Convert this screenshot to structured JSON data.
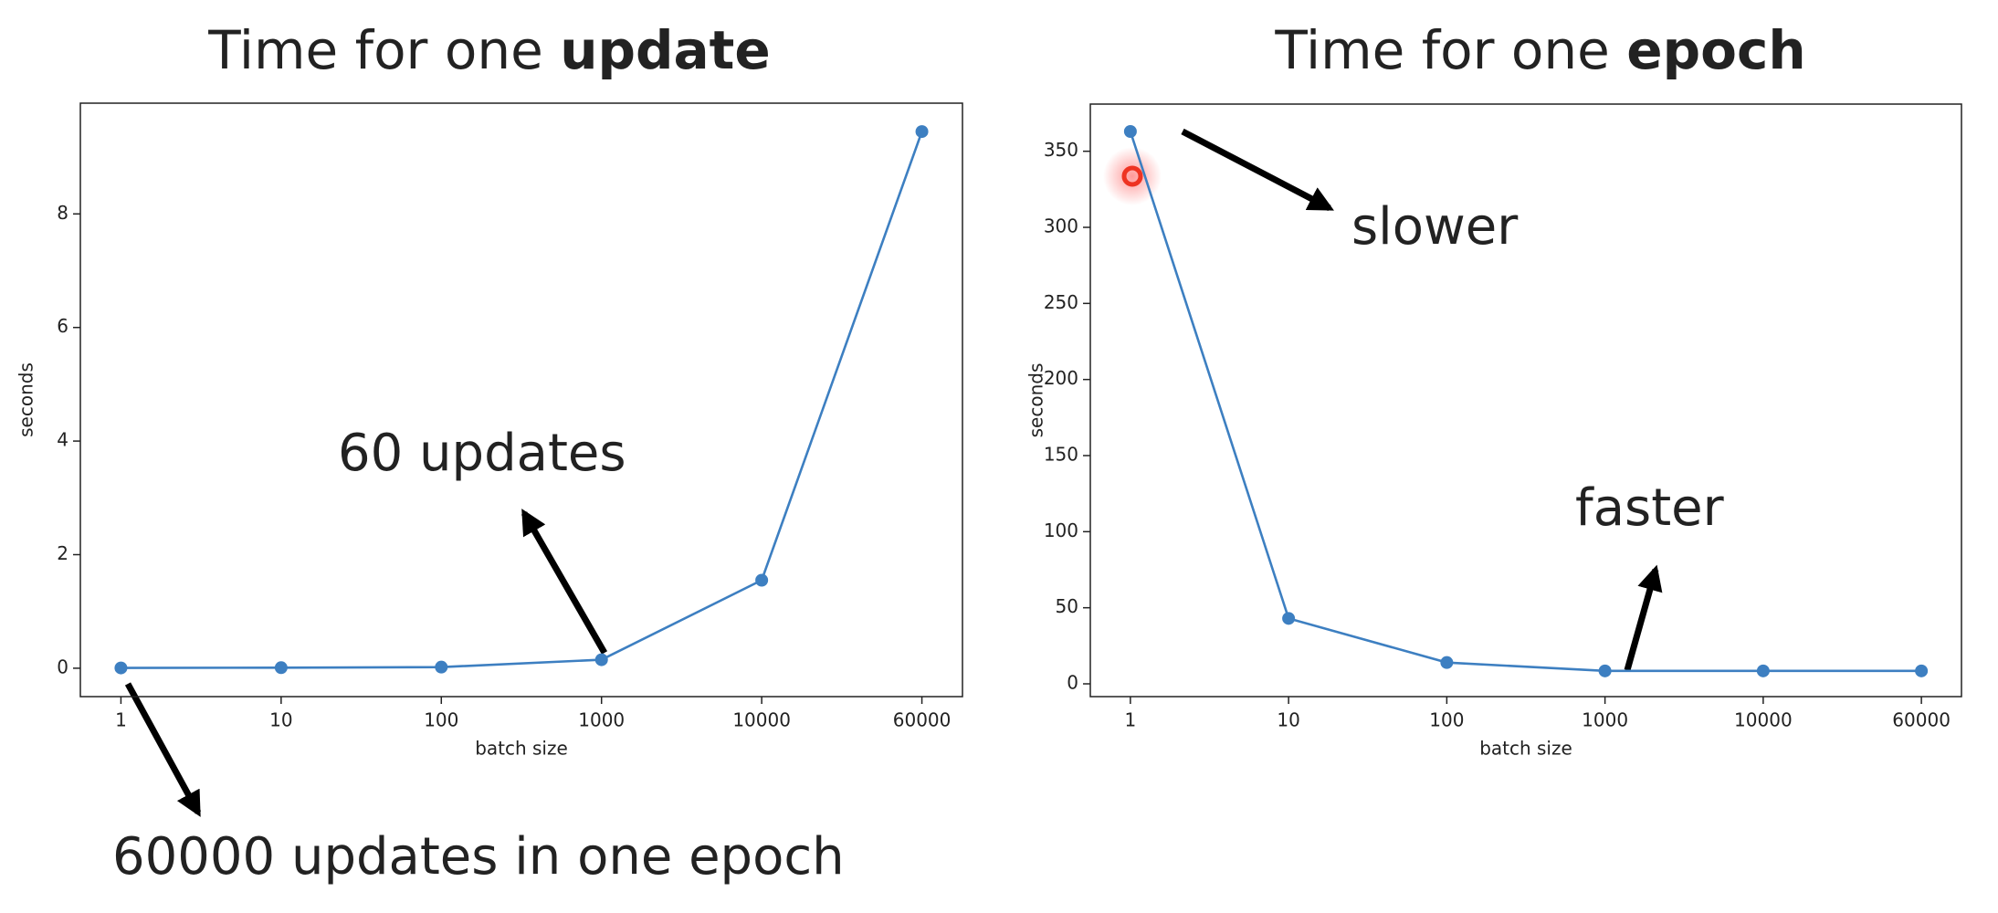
{
  "chart_data": [
    {
      "type": "line",
      "title": "Time for one",
      "title_emphasis": "update",
      "xlabel": "batch size",
      "ylabel": "seconds",
      "categories": [
        "1",
        "10",
        "100",
        "1000",
        "10000",
        "60000"
      ],
      "series": [
        {
          "color": "#3d7fc1",
          "values": [
            0.005,
            0.01,
            0.02,
            0.15,
            1.55,
            9.45
          ]
        }
      ],
      "ylim": [
        -0.5,
        9.95
      ],
      "yticks": [
        0,
        2,
        4,
        6,
        8
      ],
      "annotations": [
        "60 updates",
        "60000 updates in one epoch"
      ]
    },
    {
      "type": "line",
      "title": "Time for one",
      "title_emphasis": "epoch",
      "xlabel": "batch size",
      "ylabel": "seconds",
      "categories": [
        "1",
        "10",
        "100",
        "1000",
        "10000",
        "60000"
      ],
      "series": [
        {
          "color": "#3d7fc1",
          "values": [
            363,
            43,
            14,
            8.5,
            8.5,
            8.5
          ]
        }
      ],
      "ylim": [
        -8.4,
        381
      ],
      "yticks": [
        0,
        50,
        100,
        150,
        200,
        250,
        300,
        350
      ],
      "annotations": [
        "slower",
        "faster"
      ]
    }
  ]
}
